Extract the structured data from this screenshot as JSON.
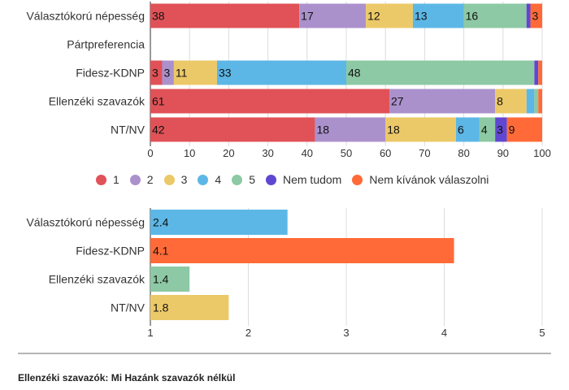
{
  "colors": {
    "1": "#e05257",
    "2": "#ab91cc",
    "3": "#ecc968",
    "4": "#5cb7e6",
    "5": "#8dc9a4",
    "Nem tudom": "#6047d1",
    "Nem kívánok válaszolni": "#ff6a38"
  },
  "legend": [
    {
      "label": "1",
      "color_key": "1"
    },
    {
      "label": "2",
      "color_key": "2"
    },
    {
      "label": "3",
      "color_key": "3"
    },
    {
      "label": "4",
      "color_key": "4"
    },
    {
      "label": "5",
      "color_key": "5"
    },
    {
      "label": "Nem tudom",
      "color_key": "Nem tudom"
    },
    {
      "label": "Nem kívánok válaszolni",
      "color_key": "Nem kívánok válaszolni"
    }
  ],
  "footnote": "Ellenzéki szavazók: Mi Hazánk szavazók nélkül",
  "chart_data": [
    {
      "type": "bar",
      "orientation": "horizontal",
      "stacked": true,
      "categories": [
        "Választókorú népesség",
        "Pártpreferencia",
        "Fidesz-KDNP",
        "Ellenzéki szavazók",
        "NT/NV"
      ],
      "series": [
        {
          "name": "1",
          "values": [
            38,
            null,
            3,
            61,
            42
          ]
        },
        {
          "name": "2",
          "values": [
            17,
            null,
            3,
            27,
            18
          ]
        },
        {
          "name": "3",
          "values": [
            12,
            null,
            11,
            8,
            18
          ]
        },
        {
          "name": "4",
          "values": [
            13,
            null,
            33,
            2,
            6
          ]
        },
        {
          "name": "5",
          "values": [
            16,
            null,
            48,
            1,
            4
          ]
        },
        {
          "name": "Nem tudom",
          "values": [
            1,
            null,
            1,
            0,
            3
          ]
        },
        {
          "name": "Nem kívánok válaszolni",
          "values": [
            3,
            null,
            1,
            1,
            9
          ]
        }
      ],
      "xlim": [
        0,
        100
      ],
      "xticks": [
        0,
        10,
        20,
        30,
        40,
        50,
        60,
        70,
        80,
        90,
        100
      ],
      "grid": true,
      "legend_position": "bottom",
      "label_min": 3
    },
    {
      "type": "bar",
      "orientation": "horizontal",
      "categories": [
        "Választókorú népesség",
        "Fidesz-KDNP",
        "Ellenzéki szavazók",
        "NT/NV"
      ],
      "values": [
        2.4,
        4.1,
        1.4,
        1.8
      ],
      "labels": [
        "2.4",
        "4.1",
        "1.4",
        "1.8"
      ],
      "bar_colors": [
        "#5cb7e6",
        "#ff6a38",
        "#8dc9a4",
        "#ecc968"
      ],
      "xlim": [
        1,
        5
      ],
      "xticks": [
        1,
        2,
        3,
        4,
        5
      ],
      "grid": true
    }
  ]
}
